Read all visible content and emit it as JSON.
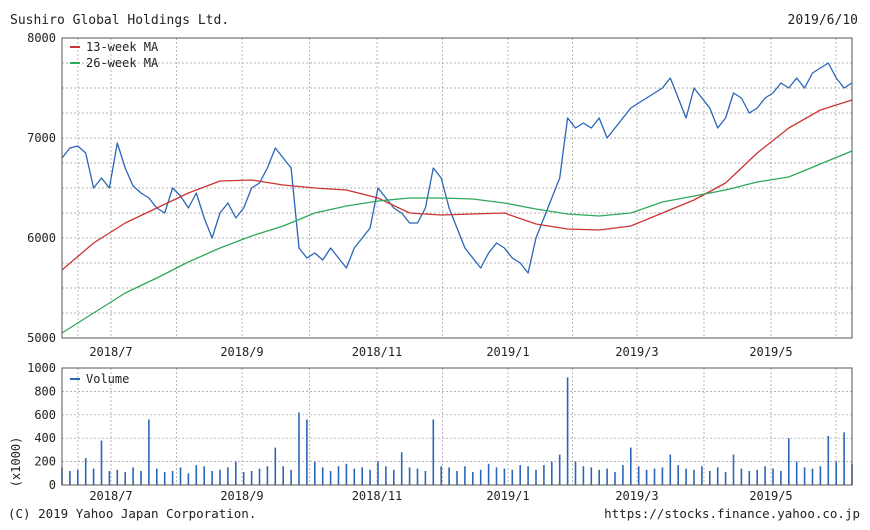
{
  "header": {
    "company": "Sushiro Global Holdings Ltd.",
    "date": "2019/6/10"
  },
  "footer": {
    "copyright": "(C) 2019 Yahoo Japan Corporation.",
    "source_url": "https://stocks.finance.yahoo.co.jp"
  },
  "colors": {
    "price": "#2b65b8",
    "ma13": "#cc3333",
    "ma26": "#2ea85a",
    "volume": "#2b65b8",
    "grid": "#9a9a9a",
    "frame": "#555555"
  },
  "chart_data": [
    {
      "type": "line",
      "x_ticks": [
        "2018/7",
        "2018/9",
        "2018/11",
        "2019/1",
        "2019/3",
        "2019/5"
      ],
      "y_ticks": [
        "5000",
        "6000",
        "7000",
        "8000"
      ],
      "ylim": [
        5000,
        8000
      ],
      "legend": [
        "13-week MA",
        "26-week MA"
      ],
      "legend_position": "top-left",
      "grid": true,
      "x_range_weeks": [
        0,
        50
      ],
      "series": [
        {
          "name": "",
          "key": "price",
          "x": [
            0,
            0.5,
            1,
            1.5,
            2,
            2.5,
            3,
            3.5,
            4,
            4.5,
            5,
            5.5,
            6,
            6.5,
            7,
            7.5,
            8,
            8.5,
            9,
            9.5,
            10,
            10.5,
            11,
            11.5,
            12,
            12.5,
            13,
            13.5,
            14,
            14.5,
            15,
            15.5,
            16,
            16.5,
            17,
            17.5,
            18,
            18.5,
            19,
            19.5,
            20,
            20.5,
            21,
            21.5,
            22,
            22.5,
            23,
            23.5,
            24,
            24.5,
            25,
            25.5,
            26,
            26.5,
            27,
            27.5,
            28,
            28.5,
            29,
            29.5,
            30,
            30.5,
            31,
            31.5,
            32,
            32.5,
            33,
            33.5,
            34,
            34.5,
            35,
            35.5,
            36,
            36.5,
            37,
            37.5,
            38,
            38.5,
            39,
            39.5,
            40,
            40.5,
            41,
            41.5,
            42,
            42.5,
            43,
            43.5,
            44,
            44.5,
            45,
            45.5,
            46,
            46.5,
            47,
            47.5,
            48,
            48.5,
            49,
            49.5,
            50
          ],
          "values": [
            6800,
            6900,
            6920,
            6850,
            6500,
            6600,
            6500,
            6950,
            6700,
            6520,
            6450,
            6400,
            6300,
            6250,
            6500,
            6420,
            6300,
            6450,
            6200,
            6000,
            6250,
            6350,
            6200,
            6300,
            6500,
            6550,
            6700,
            6900,
            6800,
            6700,
            5900,
            5800,
            5850,
            5780,
            5900,
            5800,
            5700,
            5900,
            6000,
            6100,
            6500,
            6400,
            6300,
            6250,
            6150,
            6150,
            6300,
            6700,
            6600,
            6300,
            6100,
            5900,
            5800,
            5700,
            5850,
            5950,
            5900,
            5800,
            5750,
            5650,
            6000,
            6200,
            6400,
            6600,
            7200,
            7100,
            7150,
            7100,
            7200,
            7000,
            7100,
            7200,
            7300,
            7350,
            7400,
            7450,
            7500,
            7600,
            7400,
            7200,
            7500,
            7400,
            7300,
            7100,
            7200,
            7450,
            7400,
            7250,
            7300,
            7400,
            7450,
            7550,
            7500,
            7600,
            7500,
            7650,
            7700,
            7750,
            7600,
            7500,
            7550
          ]
        },
        {
          "name": "13-week MA",
          "key": "ma13",
          "x": [
            0,
            2,
            4,
            6,
            8,
            10,
            12,
            14,
            16,
            18,
            20,
            22,
            24,
            26,
            28,
            30,
            32,
            34,
            36,
            38,
            40,
            42,
            44,
            46,
            48,
            50
          ],
          "values": [
            5680,
            5950,
            6150,
            6300,
            6450,
            6570,
            6580,
            6530,
            6500,
            6480,
            6400,
            6250,
            6230,
            6240,
            6250,
            6140,
            6090,
            6080,
            6120,
            6250,
            6380,
            6550,
            6850,
            7100,
            7280,
            7380
          ]
        },
        {
          "name": "26-week MA",
          "key": "ma26",
          "x": [
            0,
            2,
            4,
            6,
            8,
            10,
            12,
            14,
            16,
            18,
            20,
            22,
            24,
            26,
            28,
            30,
            32,
            34,
            36,
            38,
            40,
            42,
            44,
            46,
            48,
            50
          ],
          "values": [
            5050,
            5250,
            5450,
            5600,
            5760,
            5900,
            6020,
            6120,
            6250,
            6320,
            6370,
            6400,
            6400,
            6390,
            6350,
            6290,
            6240,
            6220,
            6250,
            6360,
            6420,
            6480,
            6560,
            6610,
            6740,
            6870
          ]
        }
      ]
    },
    {
      "type": "bar",
      "legend": [
        "Volume"
      ],
      "legend_position": "top-left",
      "ylabel": "(x1000)",
      "y_ticks": [
        "0",
        "200",
        "400",
        "600",
        "800",
        "1000"
      ],
      "x_ticks": [
        "2018/7",
        "2018/9",
        "2018/11",
        "2019/1",
        "2019/3",
        "2019/5"
      ],
      "ylim": [
        0,
        1000
      ],
      "grid": true,
      "series": [
        {
          "name": "Volume",
          "x": [
            0,
            0.5,
            1,
            1.5,
            2,
            2.5,
            3,
            3.5,
            4,
            4.5,
            5,
            5.5,
            6,
            6.5,
            7,
            7.5,
            8,
            8.5,
            9,
            9.5,
            10,
            10.5,
            11,
            11.5,
            12,
            12.5,
            13,
            13.5,
            14,
            14.5,
            15,
            15.5,
            16,
            16.5,
            17,
            17.5,
            18,
            18.5,
            19,
            19.5,
            20,
            20.5,
            21,
            21.5,
            22,
            22.5,
            23,
            23.5,
            24,
            24.5,
            25,
            25.5,
            26,
            26.5,
            27,
            27.5,
            28,
            28.5,
            29,
            29.5,
            30,
            30.5,
            31,
            31.5,
            32,
            32.5,
            33,
            33.5,
            34,
            34.5,
            35,
            35.5,
            36,
            36.5,
            37,
            37.5,
            38,
            38.5,
            39,
            39.5,
            40,
            40.5,
            41,
            41.5,
            42,
            42.5,
            43,
            43.5,
            44,
            44.5,
            45,
            45.5,
            46,
            46.5,
            47,
            47.5,
            48,
            48.5,
            49,
            49.5,
            50
          ],
          "values": [
            150,
            120,
            130,
            230,
            140,
            380,
            120,
            130,
            110,
            150,
            120,
            560,
            140,
            110,
            120,
            150,
            100,
            170,
            160,
            120,
            130,
            150,
            200,
            110,
            120,
            140,
            160,
            320,
            160,
            130,
            620,
            560,
            200,
            150,
            120,
            160,
            180,
            140,
            150,
            130,
            200,
            160,
            130,
            280,
            150,
            140,
            120,
            560,
            160,
            150,
            120,
            160,
            110,
            130,
            180,
            150,
            140,
            130,
            170,
            160,
            130,
            170,
            200,
            260,
            920,
            200,
            160,
            150,
            130,
            140,
            110,
            170,
            320,
            160,
            130,
            140,
            150,
            260,
            170,
            140,
            130,
            160,
            120,
            150,
            110,
            260,
            140,
            120,
            130,
            160,
            140,
            120,
            400,
            200,
            150,
            140,
            160,
            420,
            200,
            450,
            180
          ]
        }
      ]
    }
  ]
}
